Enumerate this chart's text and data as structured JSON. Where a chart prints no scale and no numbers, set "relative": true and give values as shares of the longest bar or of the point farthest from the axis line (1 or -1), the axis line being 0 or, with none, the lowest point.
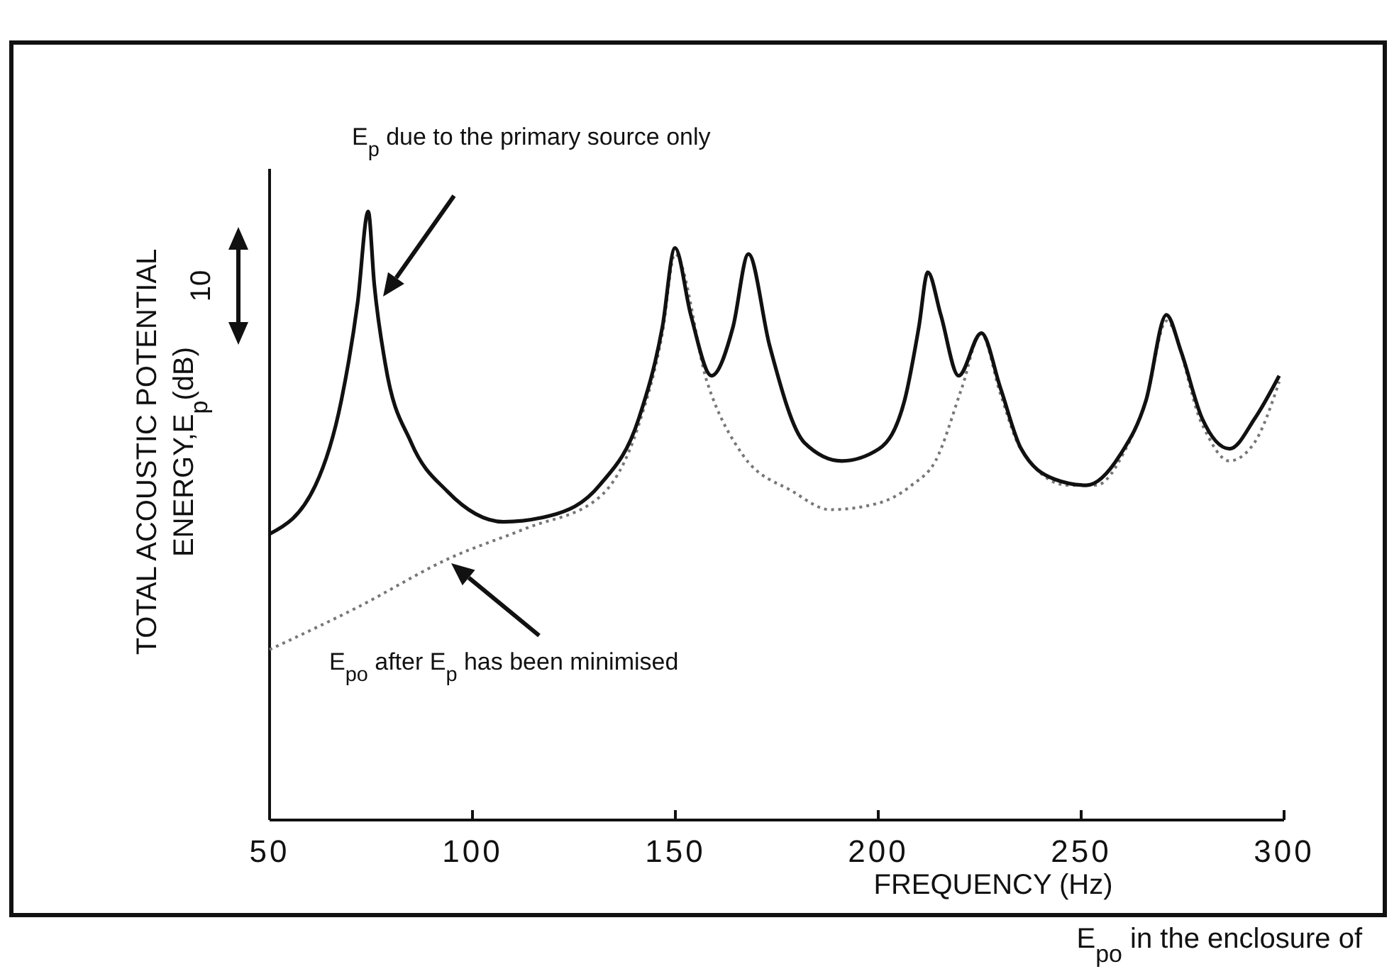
{
  "chart_data": {
    "type": "line",
    "relative": true,
    "xlabel": "FREQUENCY (Hz)",
    "ylabel": "TOTAL ACOUSTIC POTENTIAL ENERGY,E$_{p}$(dB)",
    "xlim": [
      50,
      300
    ],
    "xticks": [
      50,
      100,
      150,
      200,
      250,
      300
    ],
    "grid": false,
    "annotations": [
      "E$_{p}$  due to the primary source only",
      "E$_{po}$ after E$_{p}$ has been minimised",
      "10",
      "E$_{po}$ in the enclosure of"
    ],
    "series": [
      {
        "color": "#111111",
        "line_style": "solid",
        "x": [
          50,
          61.3,
          67.7,
          71.7,
          74.3,
          75.8,
          78.5,
          84.9,
          93.8,
          107.6,
          119.1,
          131.3,
          141,
          146.8,
          149.9,
          153.8,
          158.9,
          164.2,
          168,
          173.2,
          181.8,
          191,
          200.2,
          206.5,
          210,
          212.2,
          215.4,
          219.8,
          225.4,
          230.1,
          235.2,
          243.4,
          251.3,
          259.6,
          266,
          271,
          274.6,
          279.8,
          286.6,
          292.8,
          298.8
        ],
        "values": [
          0.47,
          0.55,
          0.69,
          0.85,
          1,
          0.88,
          0.75,
          0.62,
          0.54,
          0.49,
          0.5,
          0.55,
          0.66,
          0.81,
          0.94,
          0.83,
          0.73,
          0.81,
          0.93,
          0.78,
          0.62,
          0.59,
          0.61,
          0.69,
          0.81,
          0.9,
          0.83,
          0.73,
          0.8,
          0.71,
          0.61,
          0.56,
          0.55,
          0.6,
          0.69,
          0.83,
          0.77,
          0.66,
          0.61,
          0.66,
          0.73
        ]
      },
      {
        "color": "#777777",
        "line_style": "dotted",
        "x": [
          50,
          71.8,
          94.3,
          113.5,
          131.2,
          141,
          146.8,
          149.9,
          157.8,
          166.6,
          178.9,
          188.1,
          199.7,
          208.2,
          214.1,
          220.6,
          225.3,
          230.1,
          235.1,
          246.7,
          253.7,
          261,
          266,
          271,
          279.8,
          286.5,
          292.7,
          298.8
        ],
        "values": [
          0.28,
          0.35,
          0.43,
          0.48,
          0.53,
          0.65,
          0.8,
          0.93,
          0.72,
          0.6,
          0.54,
          0.51,
          0.52,
          0.55,
          0.59,
          0.71,
          0.8,
          0.7,
          0.61,
          0.55,
          0.55,
          0.61,
          0.69,
          0.82,
          0.65,
          0.59,
          0.62,
          0.72
        ]
      }
    ]
  }
}
